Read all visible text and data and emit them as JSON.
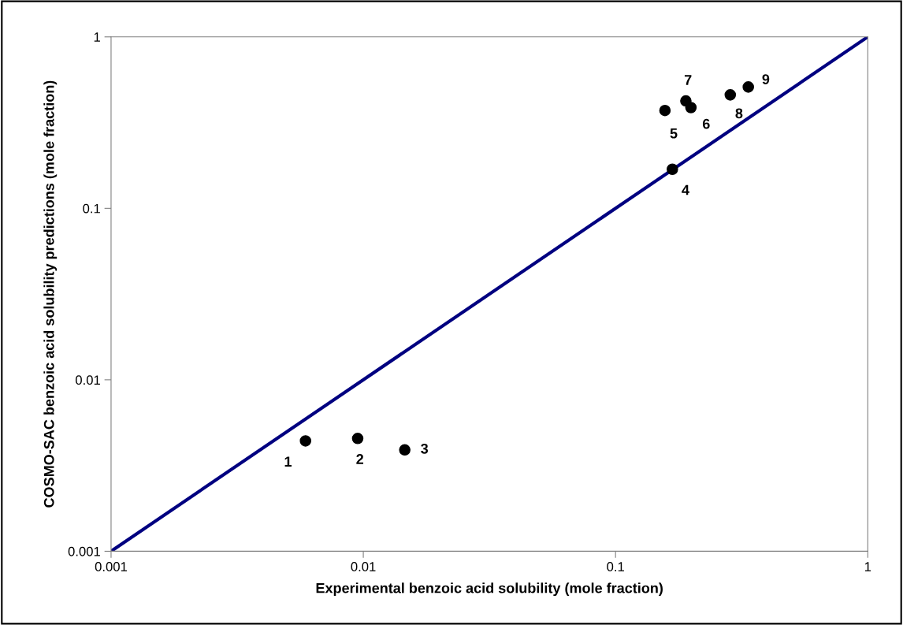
{
  "chart_data": {
    "type": "scatter",
    "xlabel": "Experimental benzoic acid solubility (mole fraction)",
    "ylabel": "COSMO-SAC benzoic acid solubility predictions (mole fraction)",
    "log": "xy",
    "grid": false,
    "marker": "circle",
    "xlim": [
      0.001,
      1
    ],
    "ylim": [
      0.001,
      1
    ],
    "xticks": [
      0.001,
      0.01,
      0.1,
      1
    ],
    "yticks": [
      0.001,
      0.01,
      0.1,
      1
    ],
    "series": [
      {
        "color": "#000000",
        "x": [
          0.0059,
          0.0095,
          0.0146,
          0.168,
          0.157,
          0.199,
          0.19,
          0.285,
          0.336
        ],
        "values": [
          0.0044,
          0.00455,
          0.0039,
          0.169,
          0.372,
          0.387,
          0.423,
          0.459,
          0.51
        ]
      },
      {
        "type": "line",
        "color": "#000080",
        "marker": "none",
        "x": [
          0.001,
          1
        ],
        "values": [
          0.001,
          1
        ]
      }
    ],
    "annotations": [
      {
        "text": "1",
        "x": 0.0059,
        "y": 0.0044
      },
      {
        "text": "2",
        "x": 0.0095,
        "y": 0.00455
      },
      {
        "text": "3",
        "x": 0.0146,
        "y": 0.0039
      },
      {
        "text": "4",
        "x": 0.168,
        "y": 0.169
      },
      {
        "text": "5",
        "x": 0.157,
        "y": 0.372
      },
      {
        "text": "6",
        "x": 0.199,
        "y": 0.387
      },
      {
        "text": "7",
        "x": 0.19,
        "y": 0.423
      },
      {
        "text": "8",
        "x": 0.285,
        "y": 0.459
      },
      {
        "text": "9",
        "x": 0.336,
        "y": 0.51
      }
    ]
  }
}
